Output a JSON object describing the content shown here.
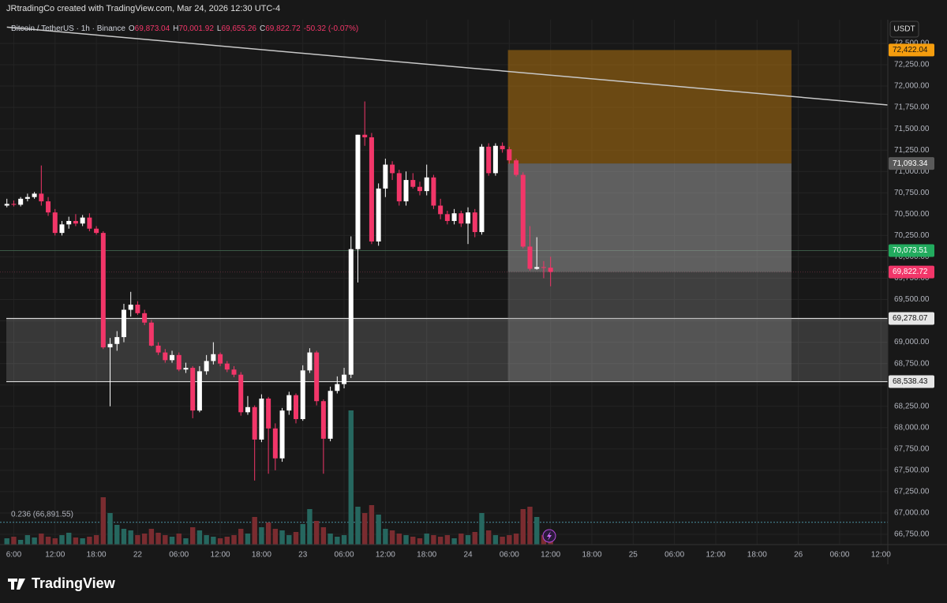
{
  "header": {
    "credit": "JRtradingCo created with TradingView.com, Mar 24, 2026 12:30 UTC-4",
    "symbol": "Bitcoin / TetherUS · 1h · Binance",
    "ohlc": [
      {
        "key": "O",
        "value": "69,873.04"
      },
      {
        "key": "H",
        "value": "70,001.92"
      },
      {
        "key": "L",
        "value": "69,655.26"
      },
      {
        "key": "C",
        "value": "69,822.72"
      }
    ],
    "change": "-50.32 (-0.07%)",
    "currency": "USDT",
    "brand": "TradingView"
  },
  "chart_data": {
    "type": "candlestick",
    "x": [
      5,
      6,
      7,
      8,
      9,
      10,
      11,
      12,
      13,
      14,
      15,
      16,
      17,
      18,
      19,
      20,
      21,
      22,
      23,
      24,
      25,
      26,
      27,
      28,
      29,
      30,
      31,
      32,
      33,
      34,
      35,
      36,
      37,
      38,
      39,
      40,
      41,
      42,
      43,
      44,
      45,
      46,
      47,
      48,
      49,
      50,
      51,
      52,
      53,
      54,
      55,
      56,
      57,
      58,
      59,
      60,
      61,
      62,
      63,
      64,
      65,
      66,
      67,
      68,
      69,
      70,
      71,
      72,
      73,
      74,
      75,
      76,
      77,
      78,
      79,
      80,
      81,
      82,
      83,
      84
    ],
    "open": [
      70600,
      70620,
      70610,
      70680,
      70700,
      70740,
      70650,
      70520,
      70280,
      70380,
      70420,
      70390,
      70460,
      70330,
      70280,
      68940,
      68980,
      69060,
      69380,
      69440,
      69340,
      69230,
      68960,
      68880,
      68790,
      68850,
      68680,
      68700,
      68200,
      68660,
      68780,
      68860,
      68750,
      68680,
      68620,
      68180,
      68240,
      67860,
      68340,
      67990,
      67640,
      68200,
      68380,
      68100,
      68670,
      68880,
      68310,
      67870,
      68430,
      68510,
      68620,
      70090,
      71430,
      71400,
      70180,
      70800,
      71080,
      70980,
      70650,
      70900,
      70820,
      70770,
      70930,
      70600,
      70500,
      70420,
      70510,
      70390,
      70520,
      70290,
      71290,
      70980,
      71300,
      71260,
      71130,
      70960,
      70120,
      69860,
      69880,
      69873.04
    ],
    "high": [
      70680,
      70660,
      70700,
      70740,
      70760,
      71070,
      70700,
      70560,
      70420,
      70470,
      70500,
      70490,
      70510,
      70360,
      70300,
      69050,
      69130,
      69450,
      69590,
      69480,
      69380,
      69260,
      69000,
      68920,
      68900,
      68880,
      68760,
      68720,
      68720,
      68850,
      69000,
      68880,
      68780,
      68720,
      68650,
      68370,
      68260,
      68390,
      68360,
      68050,
      68230,
      68420,
      68400,
      68730,
      68930,
      68900,
      68330,
      68480,
      68600,
      68700,
      70240,
      71430,
      71820,
      71450,
      70860,
      71150,
      71120,
      71020,
      71000,
      70980,
      70880,
      71080,
      70960,
      70680,
      70540,
      70560,
      70540,
      70580,
      70560,
      71320,
      71330,
      71330,
      71340,
      71290,
      71150,
      70990,
      70360,
      70230,
      69950,
      70001.92
    ],
    "low": [
      70580,
      70590,
      70590,
      70650,
      70680,
      70600,
      70480,
      70250,
      70250,
      70330,
      70360,
      70360,
      70300,
      70260,
      68920,
      68250,
      68900,
      69000,
      69300,
      69320,
      69200,
      68950,
      68850,
      68760,
      68760,
      68660,
      68640,
      68110,
      68180,
      68620,
      68740,
      68720,
      68650,
      68590,
      68140,
      68150,
      67380,
      67830,
      67460,
      67500,
      67600,
      68150,
      68050,
      68080,
      68640,
      68260,
      67460,
      67840,
      68400,
      68460,
      68580,
      69700,
      71300,
      70150,
      70130,
      70700,
      70900,
      70600,
      70600,
      70800,
      70720,
      70720,
      70560,
      70440,
      70380,
      70380,
      70350,
      70150,
      70230,
      70260,
      70950,
      70950,
      71220,
      71090,
      70940,
      70100,
      69840,
      69850,
      69750,
      69655.26
    ],
    "close": [
      70620,
      70610,
      70680,
      70700,
      70740,
      70650,
      70520,
      70280,
      70380,
      70420,
      70390,
      70460,
      70330,
      70280,
      68940,
      68980,
      69060,
      69380,
      69440,
      69340,
      69230,
      68960,
      68880,
      68790,
      68850,
      68680,
      68700,
      68200,
      68660,
      68780,
      68860,
      68750,
      68680,
      68620,
      68180,
      68240,
      67860,
      68340,
      67990,
      67640,
      68200,
      68380,
      68100,
      68670,
      68880,
      68310,
      67870,
      68430,
      68510,
      68620,
      70090,
      71430,
      71400,
      70180,
      70800,
      71080,
      70980,
      70650,
      70900,
      70820,
      70770,
      70930,
      70600,
      70500,
      70420,
      70510,
      70390,
      70520,
      70290,
      71290,
      70980,
      71300,
      71260,
      71130,
      70960,
      70120,
      69860,
      69880,
      69873.04,
      69822.72
    ],
    "volume": [
      8,
      10,
      6,
      12,
      9,
      14,
      10,
      8,
      12,
      15,
      9,
      8,
      10,
      12,
      60,
      40,
      25,
      20,
      18,
      12,
      14,
      20,
      15,
      12,
      10,
      14,
      8,
      22,
      18,
      12,
      10,
      8,
      10,
      12,
      20,
      14,
      35,
      22,
      28,
      20,
      18,
      12,
      16,
      26,
      45,
      30,
      22,
      14,
      10,
      12,
      170,
      48,
      40,
      50,
      38,
      20,
      18,
      14,
      12,
      10,
      8,
      14,
      12,
      10,
      12,
      8,
      14,
      12,
      16,
      40,
      18,
      12,
      10,
      12,
      14,
      45,
      48,
      35,
      12,
      10
    ],
    "up_color": "#ffffff",
    "down_color": "#f23669",
    "volume_up_color": "#26675f",
    "volume_down_color": "#7a2c30",
    "xlim": [
      4,
      133
    ],
    "ylim": [
      66630,
      73008
    ],
    "xticks": [
      {
        "value": 6,
        "label": "6:00"
      },
      {
        "value": 12,
        "label": "12:00"
      },
      {
        "value": 18,
        "label": "18:00"
      },
      {
        "value": 24,
        "label": "22"
      },
      {
        "value": 30,
        "label": "06:00"
      },
      {
        "value": 36,
        "label": "12:00"
      },
      {
        "value": 42,
        "label": "18:00"
      },
      {
        "value": 48,
        "label": "23"
      },
      {
        "value": 54,
        "label": "06:00"
      },
      {
        "value": 60,
        "label": "12:00"
      },
      {
        "value": 66,
        "label": "18:00"
      },
      {
        "value": 72,
        "label": "24"
      },
      {
        "value": 78,
        "label": "06:00"
      },
      {
        "value": 84,
        "label": "12:00"
      },
      {
        "value": 90,
        "label": "18:00"
      },
      {
        "value": 96,
        "label": "25"
      },
      {
        "value": 102,
        "label": "06:00"
      },
      {
        "value": 108,
        "label": "12:00"
      },
      {
        "value": 114,
        "label": "18:00"
      },
      {
        "value": 120,
        "label": "26"
      },
      {
        "value": 126,
        "label": "06:00"
      },
      {
        "value": 132,
        "label": "12:00"
      }
    ],
    "yticks": [
      {
        "value": 66750,
        "label": "66,750.00"
      },
      {
        "value": 67000,
        "label": "67,000.00"
      },
      {
        "value": 67250,
        "label": "67,250.00"
      },
      {
        "value": 67500,
        "label": "67,500.00"
      },
      {
        "value": 67750,
        "label": "67,750.00"
      },
      {
        "value": 68000,
        "label": "68,000.00"
      },
      {
        "value": 68250,
        "label": "68,250.00"
      },
      {
        "value": 68500,
        "label": "68,500.00"
      },
      {
        "value": 68750,
        "label": "68,750.00"
      },
      {
        "value": 69000,
        "label": "69,000.00"
      },
      {
        "value": 69250,
        "label": "69,250.00"
      },
      {
        "value": 69500,
        "label": "69,500.00"
      },
      {
        "value": 69750,
        "label": "69,750.00"
      },
      {
        "value": 70000,
        "label": "70,000.00"
      },
      {
        "value": 70250,
        "label": "70,250.00"
      },
      {
        "value": 70500,
        "label": "70,500.00"
      },
      {
        "value": 70750,
        "label": "70,750.00"
      },
      {
        "value": 71000,
        "label": "71,000.00"
      },
      {
        "value": 71250,
        "label": "71,250.00"
      },
      {
        "value": 71500,
        "label": "71,500.00"
      },
      {
        "value": 71750,
        "label": "71,750.00"
      },
      {
        "value": 72000,
        "label": "72,000.00"
      },
      {
        "value": 72250,
        "label": "72,250.00"
      },
      {
        "value": 72500,
        "label": "72,500.00"
      }
    ],
    "grid": true,
    "trendline": {
      "start": [
        5,
        72690
      ],
      "end": [
        133,
        71779
      ],
      "color": "#c8c8c8"
    },
    "zone": {
      "upper": 69278.07,
      "lower": 68538.43
    },
    "position": {
      "x_start": 77.8,
      "x_end": 119,
      "upper": 72422.04,
      "entry": 71093.34,
      "current": 69822.72,
      "lower": 68538.43
    },
    "level_line": 70073.51,
    "fib": {
      "value": 66891.55,
      "label": "0.236 (66,891.55)"
    },
    "price_labels": [
      {
        "value": 72422.04,
        "label": "72,422.04",
        "color": "#f59d0e"
      },
      {
        "value": 71093.34,
        "label": "71,093.34",
        "color": "#5a5a5a"
      },
      {
        "value": 70073.51,
        "label": "70,073.51",
        "color": "#22ab5e"
      },
      {
        "value": 69822.72,
        "label": "69,822.72",
        "color": "#f23669"
      },
      {
        "value": 69278.07,
        "label": "69,278.07",
        "color": "#e6e6e6"
      },
      {
        "value": 68538.43,
        "label": "68,538.43",
        "color": "#e6e6e6"
      }
    ]
  }
}
